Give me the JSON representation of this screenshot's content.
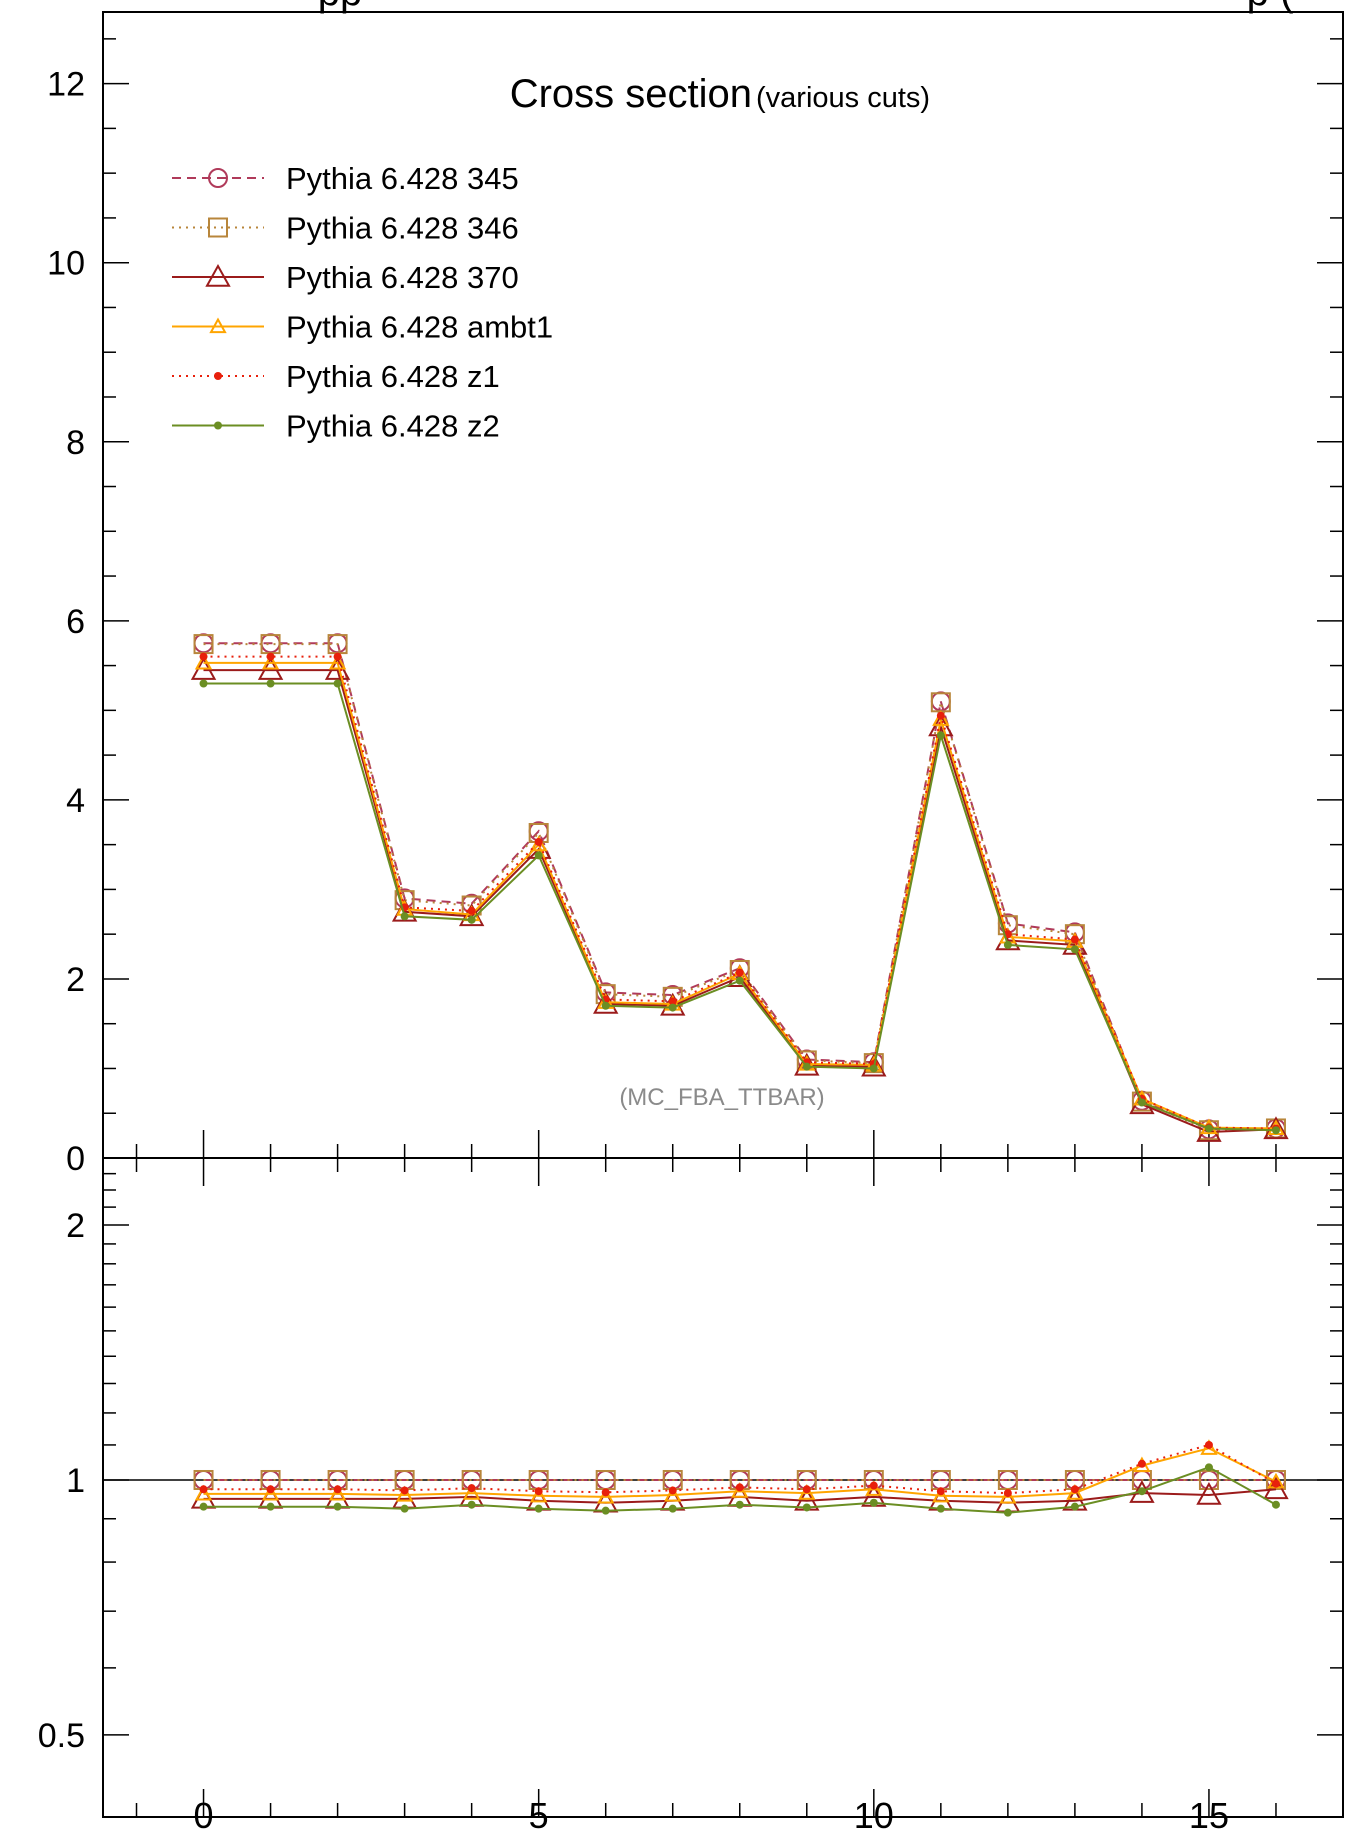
{
  "chart_data": [
    {
      "type": "line",
      "title": "Cross section",
      "subtitle": "(various cuts)",
      "top_title_fragment": "pp",
      "top_title_fragment_right": "p (",
      "watermark": "(MC_FBA_TTBAR)",
      "xlim": [
        -1.5,
        17
      ],
      "ylim": [
        0,
        12.8
      ],
      "yticks": [
        "0",
        "2",
        "4",
        "6",
        "8",
        "10",
        "12"
      ],
      "legend_position": "top-left",
      "x": [
        0,
        1,
        2,
        3,
        4,
        5,
        6,
        7,
        8,
        9,
        10,
        11,
        12,
        13,
        14,
        15,
        16
      ],
      "series": [
        {
          "name": "Pythia 6.428 345",
          "color": "#b03a5a",
          "dash": "dashed",
          "marker": "circle",
          "values": [
            5.75,
            5.75,
            5.75,
            2.9,
            2.84,
            3.65,
            1.85,
            1.82,
            2.12,
            1.1,
            1.07,
            5.1,
            2.62,
            2.52,
            0.64,
            0.32,
            0.33
          ]
        },
        {
          "name": "Pythia 6.428 346",
          "color": "#b8863b",
          "dash": "dotted",
          "marker": "square",
          "values": [
            5.74,
            5.74,
            5.74,
            2.88,
            2.82,
            3.63,
            1.83,
            1.8,
            2.1,
            1.09,
            1.06,
            5.09,
            2.6,
            2.5,
            0.63,
            0.31,
            0.33
          ]
        },
        {
          "name": "Pythia 6.428 370",
          "color": "#9b1b1b",
          "dash": "solid",
          "marker": "triangle",
          "values": [
            5.45,
            5.45,
            5.45,
            2.75,
            2.7,
            3.45,
            1.72,
            1.7,
            2.02,
            1.03,
            1.02,
            4.82,
            2.43,
            2.38,
            0.6,
            0.29,
            0.32
          ]
        },
        {
          "name": "Pythia 6.428 ambt1",
          "color": "#ffa500",
          "dash": "solid",
          "marker": "triangle-small",
          "values": [
            5.53,
            5.53,
            5.53,
            2.78,
            2.72,
            3.5,
            1.74,
            1.72,
            2.06,
            1.05,
            1.04,
            4.9,
            2.47,
            2.42,
            0.66,
            0.34,
            0.33
          ]
        },
        {
          "name": "Pythia 6.428 z1",
          "color": "#e8200c",
          "dash": "dotted",
          "marker": "dot",
          "values": [
            5.6,
            5.6,
            5.6,
            2.8,
            2.76,
            3.53,
            1.77,
            1.75,
            2.07,
            1.07,
            1.05,
            4.94,
            2.5,
            2.44,
            0.66,
            0.34,
            0.33
          ]
        },
        {
          "name": "Pythia 6.428 z2",
          "color": "#6b8e23",
          "dash": "solid",
          "marker": "dot",
          "values": [
            5.3,
            5.3,
            5.3,
            2.7,
            2.66,
            3.38,
            1.7,
            1.68,
            1.98,
            1.02,
            1.0,
            4.72,
            2.38,
            2.33,
            0.62,
            0.33,
            0.31
          ]
        }
      ]
    },
    {
      "type": "line",
      "xlim": [
        -1.5,
        17
      ],
      "ylim": [
        0.4,
        2.4
      ],
      "yscale": "log",
      "yticks": [
        "0.5",
        "1",
        "2"
      ],
      "xticks": [
        "0",
        "5",
        "10",
        "15"
      ],
      "reference_line": 1,
      "x": [
        0,
        1,
        2,
        3,
        4,
        5,
        6,
        7,
        8,
        9,
        10,
        11,
        12,
        13,
        14,
        15,
        16
      ],
      "series": [
        {
          "name": "Pythia 6.428 345",
          "color": "#b03a5a",
          "dash": "dashed",
          "marker": "circle",
          "values": [
            1,
            1,
            1,
            1,
            1,
            1,
            1,
            1,
            1,
            1,
            1,
            1,
            1,
            1,
            1,
            1,
            1
          ]
        },
        {
          "name": "Pythia 6.428 346",
          "color": "#b8863b",
          "dash": "dotted",
          "marker": "square",
          "values": [
            1,
            1,
            1,
            1,
            1,
            1,
            1,
            1,
            1,
            1,
            1,
            1,
            1,
            1,
            1,
            1,
            1
          ]
        },
        {
          "name": "Pythia 6.428 370",
          "color": "#9b1b1b",
          "dash": "solid",
          "marker": "triangle",
          "values": [
            0.95,
            0.95,
            0.95,
            0.95,
            0.955,
            0.945,
            0.94,
            0.945,
            0.955,
            0.945,
            0.955,
            0.945,
            0.94,
            0.945,
            0.965,
            0.96,
            0.975
          ]
        },
        {
          "name": "Pythia 6.428 ambt1",
          "color": "#ffa500",
          "dash": "solid",
          "marker": "triangle-small",
          "values": [
            0.963,
            0.963,
            0.963,
            0.96,
            0.965,
            0.958,
            0.955,
            0.96,
            0.97,
            0.965,
            0.975,
            0.958,
            0.955,
            0.965,
            1.04,
            1.09,
            0.995
          ]
        },
        {
          "name": "Pythia 6.428 z1",
          "color": "#e8200c",
          "dash": "dotted",
          "marker": "dot",
          "values": [
            0.975,
            0.975,
            0.975,
            0.972,
            0.978,
            0.97,
            0.967,
            0.972,
            0.98,
            0.975,
            0.985,
            0.97,
            0.965,
            0.975,
            1.045,
            1.1,
            0.99
          ]
        },
        {
          "name": "Pythia 6.428 z2",
          "color": "#6b8e23",
          "dash": "solid",
          "marker": "dot",
          "values": [
            0.93,
            0.93,
            0.93,
            0.925,
            0.935,
            0.925,
            0.92,
            0.925,
            0.935,
            0.928,
            0.94,
            0.925,
            0.915,
            0.93,
            0.97,
            1.035,
            0.935
          ]
        }
      ]
    }
  ]
}
